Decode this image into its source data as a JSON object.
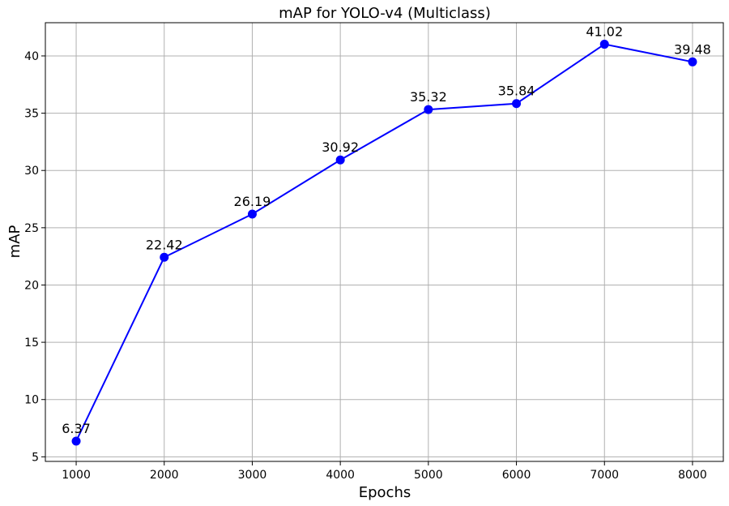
{
  "chart_data": {
    "type": "line",
    "title": "mAP for YOLO-v4 (Multiclass)",
    "xlabel": "Epochs",
    "ylabel": "mAP",
    "x": [
      1000,
      2000,
      3000,
      4000,
      5000,
      6000,
      7000,
      8000
    ],
    "series": [
      {
        "values": [
          6.37,
          22.42,
          26.19,
          30.92,
          35.32,
          35.84,
          41.02,
          39.48
        ],
        "color": "#0000ff",
        "data_labels": [
          "6.37",
          "22.42",
          "26.19",
          "30.92",
          "35.32",
          "35.84",
          "41.02",
          "39.48"
        ]
      }
    ],
    "xticks": [
      1000,
      2000,
      3000,
      4000,
      5000,
      6000,
      7000,
      8000
    ],
    "yticks": [
      5,
      10,
      15,
      20,
      25,
      30,
      35,
      40
    ],
    "xlim": [
      650,
      8350
    ],
    "ylim": [
      4.6,
      42.9
    ],
    "grid": true,
    "marker": "circle"
  }
}
